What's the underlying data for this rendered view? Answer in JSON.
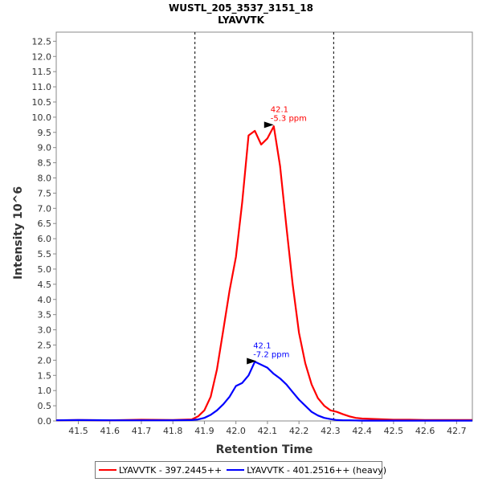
{
  "chart_data": {
    "type": "line",
    "title": "WUSTL_205_3537_3151_18",
    "subtitle": "LYAVVTK",
    "xlabel": "Retention Time",
    "ylabel": "Intensity 10^6",
    "xlim": [
      41.43,
      42.75
    ],
    "ylim": [
      0,
      12.8
    ],
    "xticks": [
      "41.5",
      "41.6",
      "41.7",
      "41.8",
      "41.9",
      "42.0",
      "42.1",
      "42.2",
      "42.3",
      "42.4",
      "42.5",
      "42.6",
      "42.7"
    ],
    "yticks": [
      "0.0",
      "0.5",
      "1.0",
      "1.5",
      "2.0",
      "2.5",
      "3.0",
      "3.5",
      "4.0",
      "4.5",
      "5.0",
      "5.5",
      "6.0",
      "6.5",
      "7.0",
      "7.5",
      "8.0",
      "8.5",
      "9.0",
      "9.5",
      "10.0",
      "10.5",
      "11.0",
      "11.5",
      "12.0",
      "12.5"
    ],
    "boundaries": [
      41.87,
      42.31
    ],
    "series": [
      {
        "name": "LYAVVTK - 397.2445++",
        "color": "#ff0000",
        "annotation": {
          "rt_label": "42.1",
          "ppm_label": "-5.3 ppm",
          "x": 42.12,
          "y": 9.75
        },
        "x": [
          41.43,
          41.5,
          41.6,
          41.7,
          41.8,
          41.86,
          41.88,
          41.9,
          41.92,
          41.94,
          41.96,
          41.98,
          42.0,
          42.02,
          42.04,
          42.06,
          42.08,
          42.1,
          42.12,
          42.14,
          42.16,
          42.18,
          42.2,
          42.22,
          42.24,
          42.26,
          42.28,
          42.3,
          42.32,
          42.34,
          42.36,
          42.38,
          42.4,
          42.45,
          42.5,
          42.55,
          42.6,
          42.65,
          42.7,
          42.75
        ],
        "y": [
          0.02,
          0.03,
          0.02,
          0.04,
          0.03,
          0.05,
          0.15,
          0.35,
          0.8,
          1.7,
          3.0,
          4.3,
          5.4,
          7.2,
          9.4,
          9.55,
          9.1,
          9.3,
          9.7,
          8.4,
          6.4,
          4.5,
          2.9,
          1.9,
          1.2,
          0.75,
          0.5,
          0.35,
          0.3,
          0.22,
          0.15,
          0.1,
          0.08,
          0.06,
          0.04,
          0.04,
          0.03,
          0.03,
          0.03,
          0.03
        ]
      },
      {
        "name": "LYAVVTK - 401.2516++ (heavy)",
        "color": "#0000ff",
        "annotation": {
          "rt_label": "42.1",
          "ppm_label": "-7.2 ppm",
          "x": 42.065,
          "y": 1.97
        },
        "x": [
          41.43,
          41.5,
          41.6,
          41.7,
          41.8,
          41.86,
          41.88,
          41.9,
          41.92,
          41.94,
          41.96,
          41.98,
          42.0,
          42.02,
          42.04,
          42.06,
          42.08,
          42.1,
          42.12,
          42.14,
          42.16,
          42.18,
          42.2,
          42.22,
          42.24,
          42.26,
          42.28,
          42.3,
          42.32,
          42.34,
          42.36,
          42.4,
          42.5,
          42.6,
          42.7,
          42.75
        ],
        "y": [
          0.02,
          0.03,
          0.02,
          0.02,
          0.02,
          0.03,
          0.05,
          0.1,
          0.2,
          0.35,
          0.55,
          0.8,
          1.15,
          1.25,
          1.5,
          1.95,
          1.85,
          1.75,
          1.55,
          1.4,
          1.2,
          0.95,
          0.7,
          0.5,
          0.3,
          0.18,
          0.1,
          0.06,
          0.03,
          0.02,
          0.02,
          0.01,
          0.01,
          0.01,
          0.01,
          0.01
        ]
      }
    ]
  }
}
